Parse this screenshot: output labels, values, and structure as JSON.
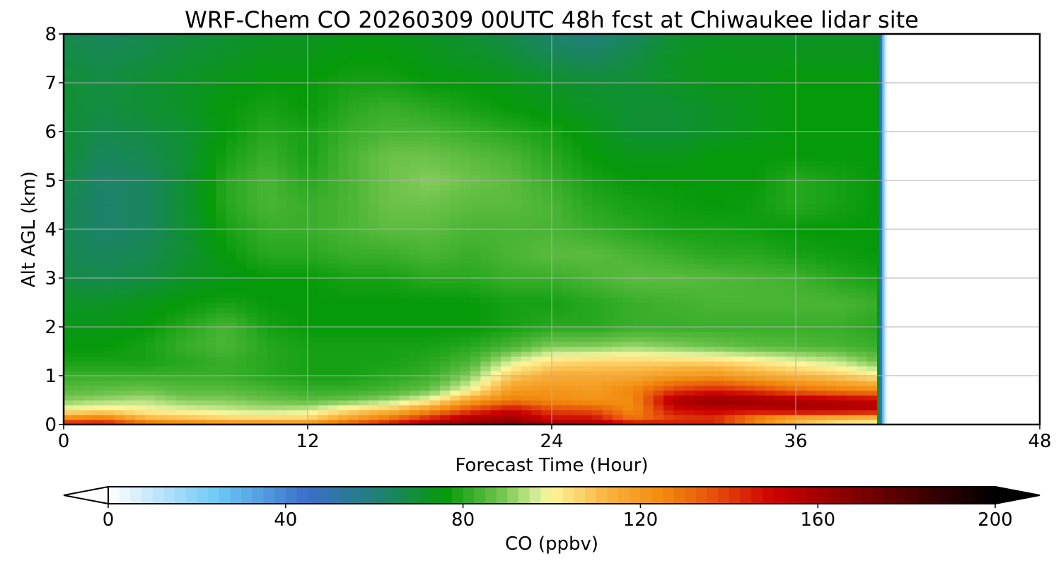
{
  "chart_data": {
    "type": "heatmap",
    "title": "WRF-Chem CO  20260309 00UTC 48h fcst at Chiwaukee lidar site",
    "xlabel": "Forecast Time (Hour)",
    "ylabel": "Alt AGL (km)",
    "xlim": [
      0,
      48
    ],
    "ylim": [
      0,
      8
    ],
    "xticks": [
      0,
      12,
      24,
      36,
      48
    ],
    "yticks": [
      0,
      1,
      2,
      3,
      4,
      5,
      6,
      7,
      8
    ],
    "grid": true,
    "data_end_hour": 40,
    "colorbar": {
      "label": "CO  (ppbv)",
      "min": 0,
      "max": 200,
      "ticks": [
        0,
        40,
        80,
        120,
        160,
        200
      ],
      "extend": "both",
      "orientation": "horizontal",
      "stops": [
        {
          "v": 0,
          "c": "#ffffff"
        },
        {
          "v": 10,
          "c": "#c6e6fb"
        },
        {
          "v": 25,
          "c": "#6ac8f5"
        },
        {
          "v": 45,
          "c": "#3a6fc9"
        },
        {
          "v": 60,
          "c": "#217f7a"
        },
        {
          "v": 76,
          "c": "#059a09"
        },
        {
          "v": 88,
          "c": "#6cc24a"
        },
        {
          "v": 97,
          "c": "#d9ef98"
        },
        {
          "v": 100,
          "c": "#fff59a"
        },
        {
          "v": 113,
          "c": "#f9b13c"
        },
        {
          "v": 125,
          "c": "#f28a0c"
        },
        {
          "v": 135,
          "c": "#e8580c"
        },
        {
          "v": 150,
          "c": "#cc0000"
        },
        {
          "v": 165,
          "c": "#8f0000"
        },
        {
          "v": 185,
          "c": "#3a0000"
        },
        {
          "v": 200,
          "c": "#000000"
        }
      ]
    },
    "altitudes_km": [
      0,
      0.1,
      0.3,
      0.5,
      0.7,
      1.0,
      1.3,
      1.6,
      2.0,
      2.5,
      3.0,
      3.5,
      4.0,
      4.5,
      5.0,
      5.5,
      6.0,
      6.5,
      7.0,
      7.5,
      8.0
    ],
    "hours": [
      0,
      2,
      4,
      6,
      8,
      10,
      12,
      14,
      16,
      18,
      20,
      22,
      24,
      26,
      28,
      30,
      32,
      34,
      36,
      38,
      40
    ],
    "values_ppbv": [
      [
        150,
        150,
        138,
        132,
        130,
        128,
        128,
        140,
        150,
        158,
        165,
        170,
        163,
        160,
        156,
        150,
        148,
        132,
        118,
        108,
        105
      ],
      [
        128,
        132,
        115,
        112,
        108,
        108,
        108,
        120,
        132,
        148,
        160,
        163,
        150,
        150,
        130,
        138,
        140,
        122,
        106,
        102,
        100
      ],
      [
        100,
        103,
        100,
        98,
        96,
        94,
        96,
        104,
        110,
        122,
        138,
        150,
        138,
        136,
        124,
        148,
        152,
        152,
        158,
        158,
        155
      ],
      [
        90,
        92,
        94,
        90,
        90,
        88,
        86,
        88,
        92,
        100,
        118,
        128,
        124,
        122,
        124,
        158,
        165,
        162,
        158,
        155,
        152
      ],
      [
        86,
        87,
        88,
        86,
        86,
        84,
        82,
        82,
        84,
        88,
        100,
        120,
        122,
        120,
        126,
        140,
        145,
        140,
        132,
        128,
        125
      ],
      [
        82,
        82,
        82,
        82,
        82,
        80,
        78,
        78,
        80,
        82,
        90,
        108,
        115,
        115,
        116,
        120,
        122,
        116,
        112,
        108,
        102
      ],
      [
        78,
        78,
        78,
        80,
        82,
        80,
        78,
        78,
        78,
        80,
        84,
        96,
        104,
        106,
        106,
        106,
        105,
        102,
        98,
        95,
        88
      ],
      [
        76,
        76,
        78,
        82,
        84,
        80,
        78,
        78,
        78,
        78,
        80,
        84,
        90,
        90,
        92,
        90,
        88,
        86,
        85,
        84,
        82
      ],
      [
        74,
        74,
        76,
        80,
        84,
        78,
        76,
        76,
        76,
        76,
        76,
        78,
        80,
        80,
        82,
        82,
        82,
        82,
        82,
        82,
        80
      ],
      [
        72,
        72,
        74,
        76,
        78,
        76,
        76,
        76,
        76,
        76,
        76,
        78,
        78,
        80,
        82,
        83,
        84,
        84,
        84,
        84,
        82
      ],
      [
        68,
        66,
        68,
        72,
        74,
        76,
        76,
        78,
        78,
        80,
        80,
        82,
        82,
        84,
        86,
        86,
        85,
        84,
        83,
        80,
        78
      ],
      [
        66,
        64,
        66,
        70,
        76,
        80,
        80,
        82,
        82,
        84,
        82,
        84,
        86,
        86,
        84,
        82,
        80,
        80,
        78,
        77,
        76
      ],
      [
        66,
        62,
        64,
        70,
        78,
        82,
        82,
        84,
        86,
        86,
        84,
        84,
        84,
        82,
        80,
        78,
        78,
        77,
        76,
        76,
        76
      ],
      [
        66,
        62,
        64,
        70,
        80,
        84,
        82,
        84,
        88,
        88,
        86,
        86,
        84,
        80,
        78,
        77,
        76,
        77,
        80,
        78,
        76
      ],
      [
        68,
        62,
        64,
        70,
        80,
        84,
        80,
        84,
        88,
        90,
        88,
        86,
        82,
        78,
        76,
        76,
        76,
        76,
        80,
        78,
        76
      ],
      [
        70,
        64,
        66,
        70,
        78,
        82,
        78,
        84,
        88,
        88,
        86,
        84,
        80,
        76,
        74,
        74,
        76,
        76,
        76,
        76,
        76
      ],
      [
        70,
        66,
        68,
        70,
        76,
        80,
        78,
        82,
        84,
        84,
        82,
        80,
        78,
        74,
        70,
        70,
        72,
        74,
        76,
        76,
        76
      ],
      [
        70,
        68,
        70,
        72,
        76,
        78,
        76,
        80,
        82,
        80,
        78,
        76,
        74,
        72,
        70,
        70,
        72,
        74,
        76,
        76,
        76
      ],
      [
        70,
        68,
        70,
        72,
        74,
        76,
        76,
        78,
        78,
        76,
        76,
        74,
        72,
        70,
        70,
        72,
        74,
        74,
        76,
        76,
        76
      ],
      [
        68,
        66,
        68,
        70,
        72,
        74,
        74,
        76,
        76,
        74,
        72,
        70,
        66,
        64,
        68,
        72,
        74,
        74,
        74,
        74,
        74
      ],
      [
        66,
        64,
        66,
        68,
        70,
        72,
        72,
        74,
        74,
        72,
        70,
        66,
        62,
        60,
        64,
        70,
        72,
        72,
        72,
        72,
        72
      ]
    ]
  }
}
